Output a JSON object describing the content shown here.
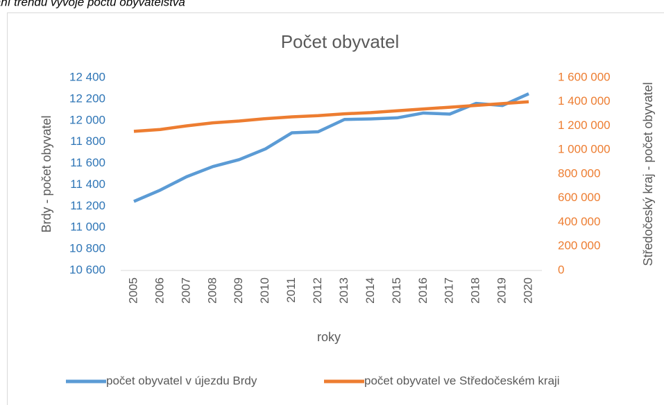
{
  "caption": "lání trendu vývoje počtu obyvatelstva",
  "chart_data": {
    "type": "line",
    "title": "Počet obyvatel",
    "x_label": "roky",
    "y_label": "Brdy - počet obyvatel",
    "y2_label": "Středočeský kraj - počet obyvatel",
    "categories": [
      "2005",
      "2006",
      "2007",
      "2008",
      "2009",
      "2010",
      "2011",
      "2012",
      "2013",
      "2014",
      "2015",
      "2016",
      "2017",
      "2018",
      "2019",
      "2020"
    ],
    "series": [
      {
        "name": "počet obyvatel v újezdu Brdy",
        "color": "#5b9bd5",
        "axis": "y",
        "values": [
          11245,
          11350,
          11475,
          11570,
          11635,
          11735,
          11885,
          11895,
          12010,
          12015,
          12025,
          12070,
          12060,
          12160,
          12140,
          12250
        ]
      },
      {
        "name": "počet obyvatel ve Středočeském kraji",
        "color": "#ed7d31",
        "axis": "y2",
        "values": [
          1155000,
          1170000,
          1200000,
          1225000,
          1240000,
          1260000,
          1275000,
          1285000,
          1300000,
          1310000,
          1325000,
          1340000,
          1355000,
          1370000,
          1385000,
          1400000
        ]
      }
    ],
    "ylim": [
      10600,
      12400
    ],
    "yticks": [
      {
        "value": 10600,
        "label": "10 600"
      },
      {
        "value": 10800,
        "label": "10 800"
      },
      {
        "value": 11000,
        "label": "11 000"
      },
      {
        "value": 11200,
        "label": "11 200"
      },
      {
        "value": 11400,
        "label": "11 400"
      },
      {
        "value": 11600,
        "label": "11 600"
      },
      {
        "value": 11800,
        "label": "11 800"
      },
      {
        "value": 12000,
        "label": "12 000"
      },
      {
        "value": 12200,
        "label": "12 200"
      },
      {
        "value": 12400,
        "label": "12 400"
      }
    ],
    "y2lim": [
      0,
      1600000
    ],
    "y2ticks": [
      0,
      {
        "value": 200000,
        "label": "200 000"
      },
      {
        "value": 400000,
        "label": "400 000"
      },
      {
        "value": 600000,
        "label": "600 000"
      },
      {
        "value": 800000,
        "label": "800 000"
      },
      {
        "value": 1000000,
        "label": "1 000 000"
      },
      {
        "value": 1200000,
        "label": "1 200 000"
      },
      {
        "value": 1400000,
        "label": "1 400 000"
      },
      {
        "value": 1600000,
        "label": "1 600 000"
      }
    ],
    "legend": "bottom"
  }
}
